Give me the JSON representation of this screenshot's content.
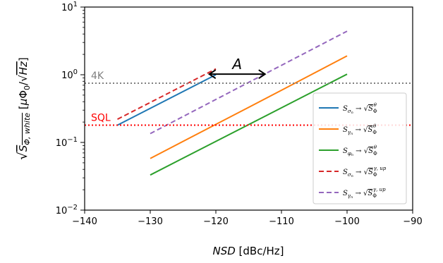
{
  "chart_data": {
    "type": "line",
    "xlabel": "NSD [dBc/Hz]",
    "ylabel": "√S_{Φ,white} [μΦ0/√Hz]",
    "xlim": [
      -140,
      -90
    ],
    "ylim": [
      0.01,
      10
    ],
    "yscale": "log",
    "grid": false,
    "legend_position": "bottom-right",
    "x_ticks": [
      -140,
      -130,
      -120,
      -110,
      -100,
      -90
    ],
    "x_tick_labels": [
      "−140",
      "−130",
      "−120",
      "−110",
      "−100",
      "−90"
    ],
    "y_ticks": [
      0.01,
      0.1,
      1,
      10
    ],
    "y_tick_labels": [
      {
        "base": "10",
        "exp": "−2"
      },
      {
        "base": "10",
        "exp": "−1"
      },
      {
        "base": "10",
        "exp": "0"
      },
      {
        "base": "10",
        "exp": "1"
      }
    ],
    "series": [
      {
        "name": "S_σn → √S_Φ^θ",
        "color": "#1f77b4",
        "dash": "solid",
        "x": [
          -135,
          -120
        ],
        "y": [
          0.18,
          1.0
        ]
      },
      {
        "name": "S_γn → √S_Φ^θ",
        "color": "#ff7f0e",
        "dash": "solid",
        "x": [
          -130,
          -120,
          -115,
          -110,
          -100
        ],
        "y": [
          0.058,
          0.185,
          0.33,
          0.59,
          1.9
        ]
      },
      {
        "name": "S_φn → √S_Φ^θ",
        "color": "#2ca02c",
        "dash": "solid",
        "x": [
          -130,
          -100
        ],
        "y": [
          0.033,
          1.02
        ]
      },
      {
        "name": "S_σn → √S_Φ^γ,up",
        "color": "#d62728",
        "dash": "dashed",
        "x": [
          -135,
          -120
        ],
        "y": [
          0.22,
          1.22
        ]
      },
      {
        "name": "S_γn → √S_Φ^γ,up",
        "color": "#9467bd",
        "dash": "dashed",
        "x": [
          -130,
          -100
        ],
        "y": [
          0.135,
          4.4
        ]
      }
    ],
    "hlines": [
      {
        "label": "4K",
        "y": 0.75,
        "color": "#808080"
      },
      {
        "label": "SQL",
        "y": 0.18,
        "color": "#ff0000"
      }
    ],
    "annotations": [
      {
        "label": "A",
        "type": "double-arrow",
        "x_start": -121,
        "x_end": -112.5,
        "y": 1.02
      }
    ]
  }
}
